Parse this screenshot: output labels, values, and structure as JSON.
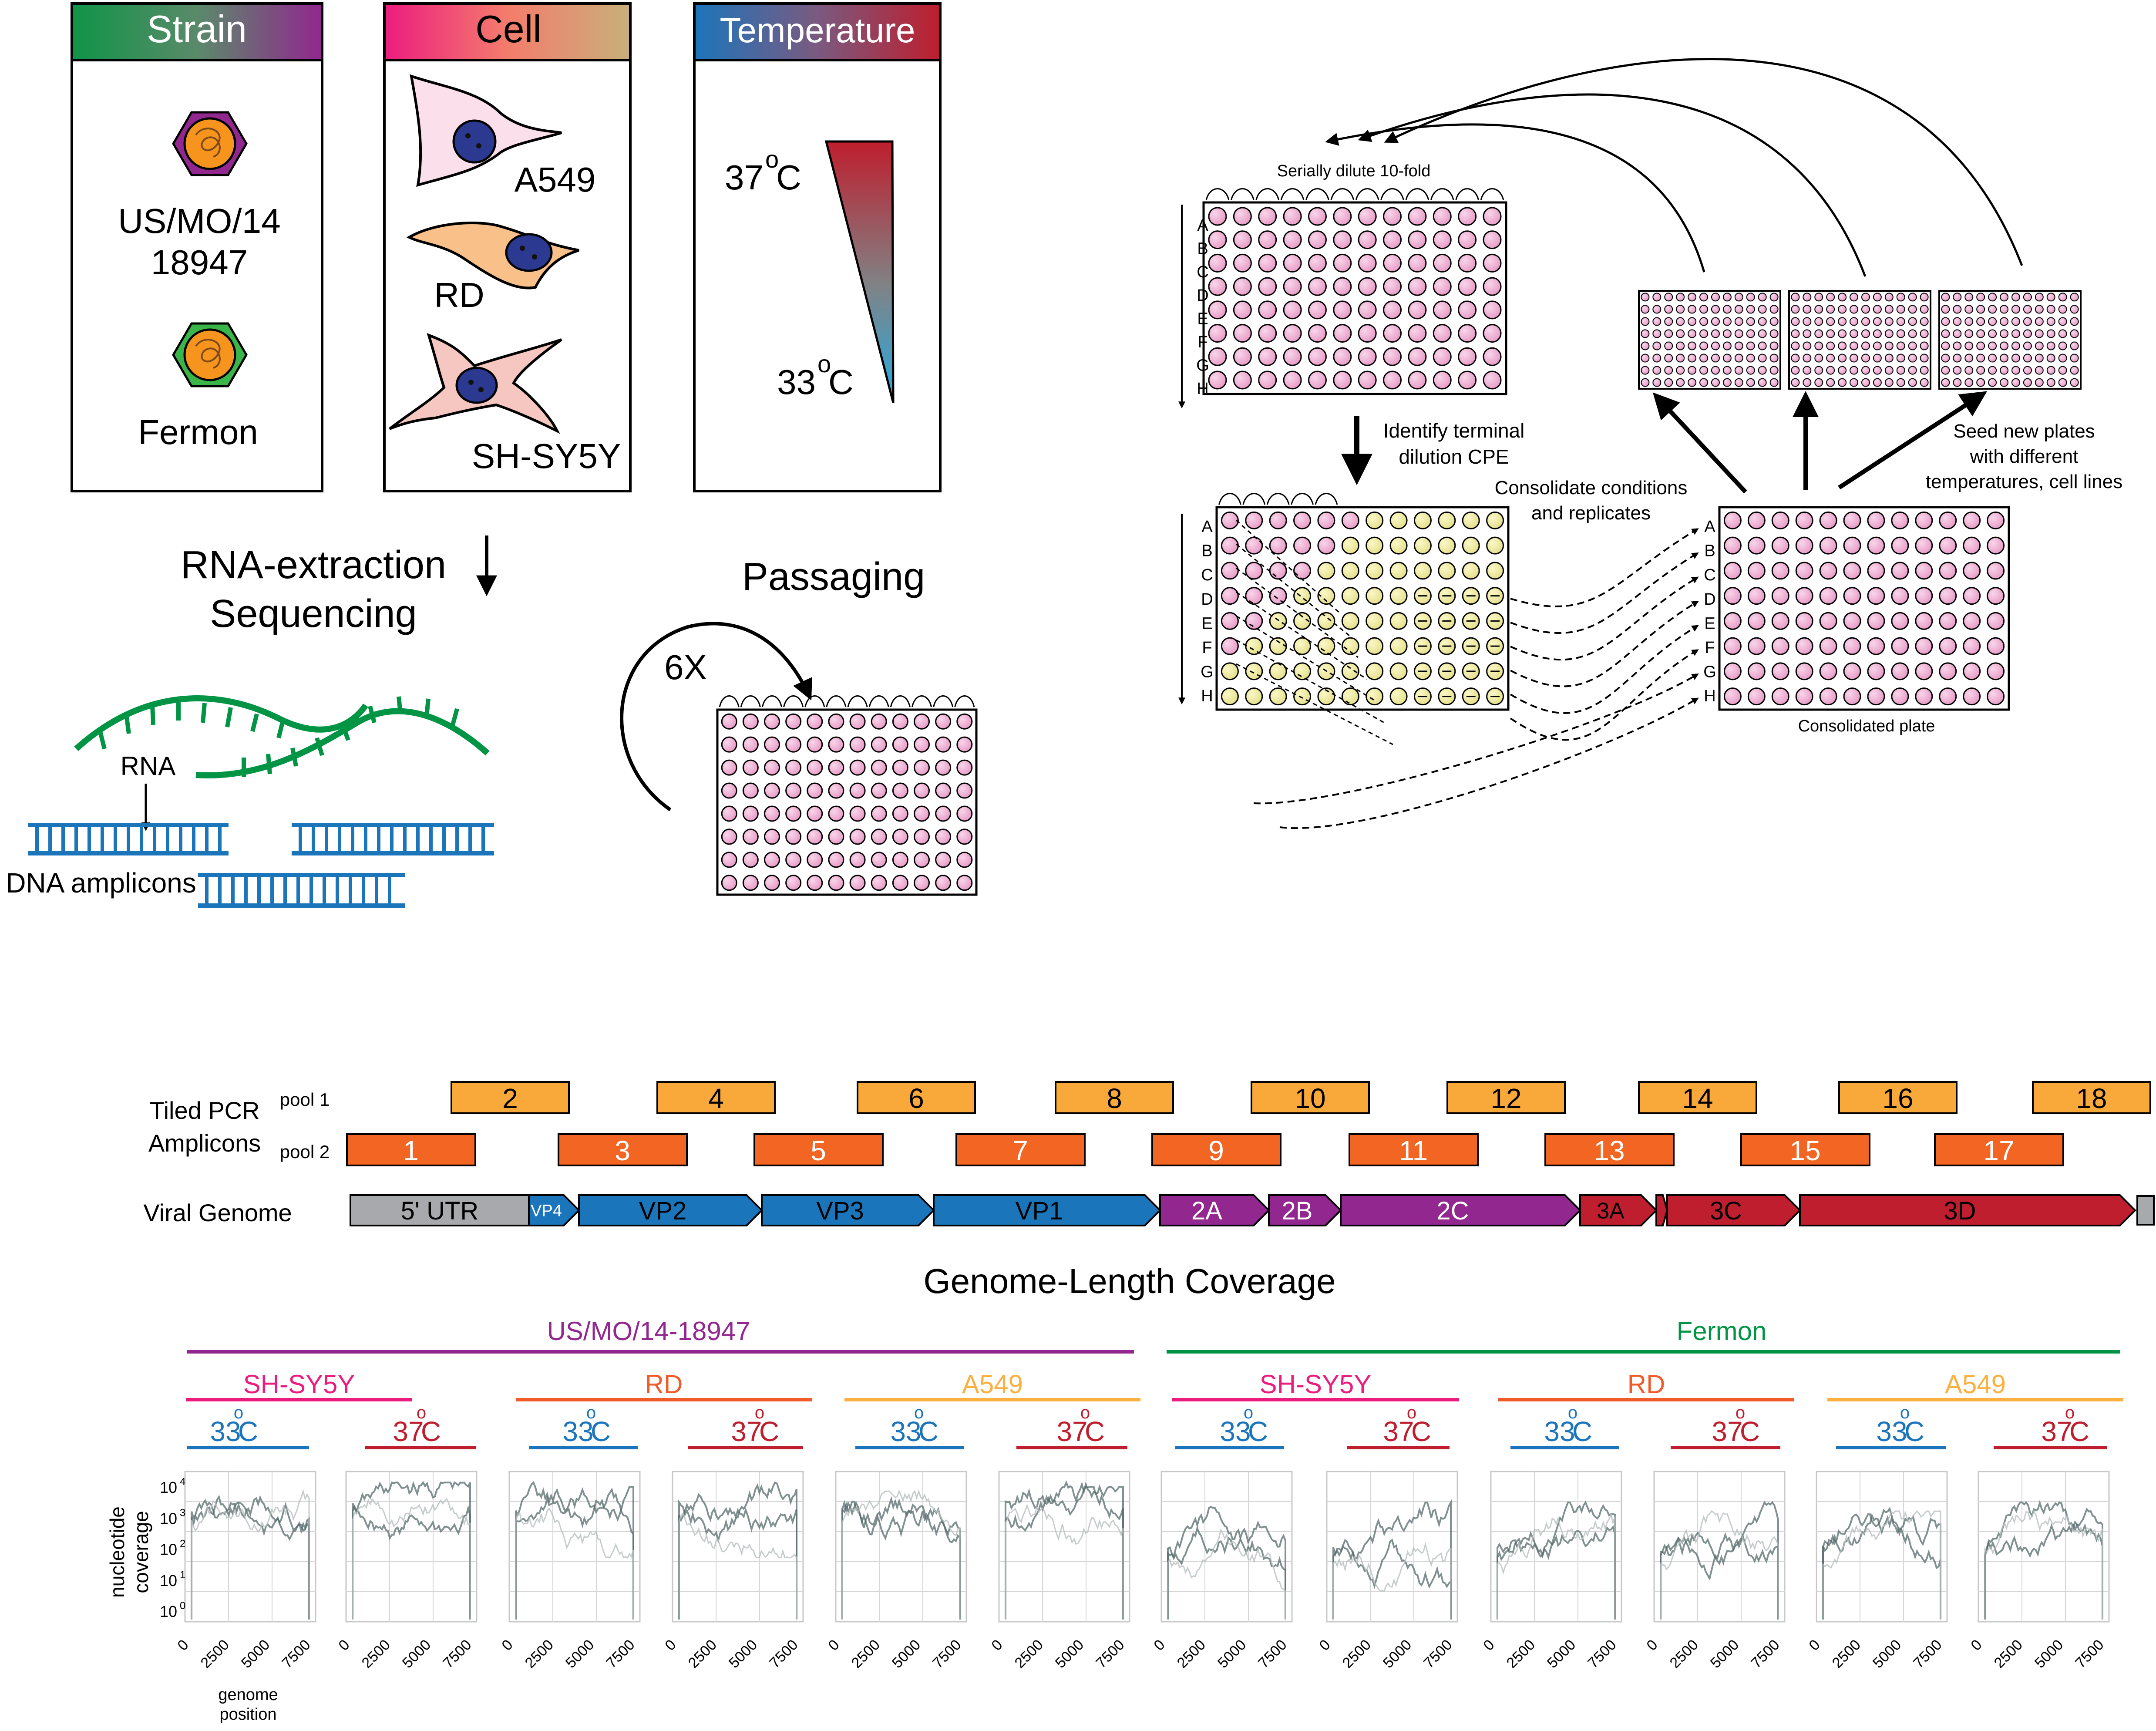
{
  "panels": {
    "strain": {
      "title": "Strain",
      "item1": "US/MO/14",
      "item1b": "18947",
      "item2": "Fermon"
    },
    "cell": {
      "title": "Cell",
      "items": [
        "A549",
        "RD",
        "SH-SY5Y"
      ]
    },
    "temperature": {
      "title": "Temperature",
      "high": "37",
      "low": "33",
      "degree": "o",
      "unit": "C"
    }
  },
  "workflow": {
    "rna_extraction": "RNA-extraction",
    "sequencing": "Sequencing",
    "passaging": "Passaging",
    "times": "6X",
    "rna_label": "RNA",
    "dna_label": "DNA amplicons"
  },
  "dilution": {
    "serial_label": "Serially dilute 10-fold",
    "identify_line1": "Identify terminal",
    "identify_line2": "dilution CPE",
    "consolidate_line1": "Consolidate conditions",
    "consolidate_line2": "and replicates",
    "seed_line1": "Seed new plates",
    "seed_line2": "with different",
    "seed_line3": "temperatures, cell lines",
    "consolidated_plate": "Consolidated plate",
    "rows": [
      "A",
      "B",
      "C",
      "D",
      "E",
      "F",
      "G",
      "H"
    ]
  },
  "genome": {
    "tiled_pcr": "Tiled PCR",
    "amplicons": "Amplicons",
    "pool1": "pool 1",
    "pool2": "pool 2",
    "viral_genome": "Viral Genome",
    "pool1_amplicons": [
      "2",
      "4",
      "6",
      "8",
      "10",
      "12",
      "14",
      "16",
      "18"
    ],
    "pool2_amplicons": [
      "1",
      "3",
      "5",
      "7",
      "9",
      "11",
      "13",
      "15",
      "17"
    ],
    "regions": [
      "5' UTR",
      "VP4",
      "VP2",
      "VP3",
      "VP1",
      "2A",
      "2B",
      "2C",
      "3A",
      "3C",
      "3D"
    ],
    "colors": {
      "pool1": "#f9a93a",
      "pool2": "#f26522",
      "utr": "#a7a9ac",
      "structural": "#1b75bb",
      "p2": "#92278f",
      "p3": "#be1e2d"
    }
  },
  "coverage": {
    "title": "Genome-Length Coverage",
    "strain1": "US/MO/14-18947",
    "strain2": "Fermon",
    "cells": [
      "SH-SY5Y",
      "RD",
      "A549"
    ],
    "temps": [
      "33",
      "37"
    ],
    "degree": "o",
    "unit": "C",
    "ylabel1": "nucleotide",
    "ylabel2": "coverage",
    "xlabel1": "genome",
    "xlabel2": "position",
    "yticks": [
      "10",
      "10",
      "10",
      "10",
      "10"
    ],
    "yexp": [
      "4",
      "3",
      "2",
      "1",
      "0"
    ],
    "xticks": [
      "0",
      "2500",
      "5000",
      "7500"
    ],
    "colors": {
      "strain1": "#92278f",
      "strain2": "#009444",
      "shsy5y": "#ec1c7f",
      "rd": "#f15a29",
      "a549": "#fbb040",
      "t33": "#1c75bc",
      "t37": "#be1e2d"
    }
  }
}
